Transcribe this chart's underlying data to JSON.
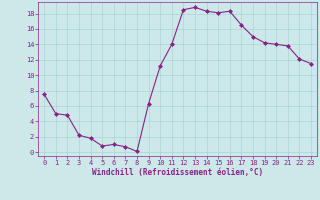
{
  "x": [
    0,
    1,
    2,
    3,
    4,
    5,
    6,
    7,
    8,
    9,
    10,
    11,
    12,
    13,
    14,
    15,
    16,
    17,
    18,
    19,
    20,
    21,
    22,
    23
  ],
  "y": [
    7.5,
    5.0,
    4.8,
    2.2,
    1.8,
    0.8,
    1.0,
    0.7,
    0.1,
    6.3,
    11.2,
    14.0,
    18.5,
    18.8,
    18.3,
    18.1,
    18.3,
    16.5,
    15.0,
    14.2,
    14.0,
    13.8,
    12.1,
    11.5
  ],
  "line_color": "#882288",
  "marker": "D",
  "marker_size": 2,
  "bg_color": "#cce8e8",
  "grid_color": "#aad4d4",
  "xlabel": "Windchill (Refroidissement éolien,°C)",
  "xlabel_color": "#882288",
  "tick_color": "#882288",
  "ylim": [
    -0.5,
    19.5
  ],
  "xlim": [
    -0.5,
    23.5
  ],
  "yticks": [
    0,
    2,
    4,
    6,
    8,
    10,
    12,
    14,
    16,
    18
  ],
  "xticks": [
    0,
    1,
    2,
    3,
    4,
    5,
    6,
    7,
    8,
    9,
    10,
    11,
    12,
    13,
    14,
    15,
    16,
    17,
    18,
    19,
    20,
    21,
    22,
    23
  ],
  "tick_fontsize": 5,
  "xlabel_fontsize": 5.5
}
